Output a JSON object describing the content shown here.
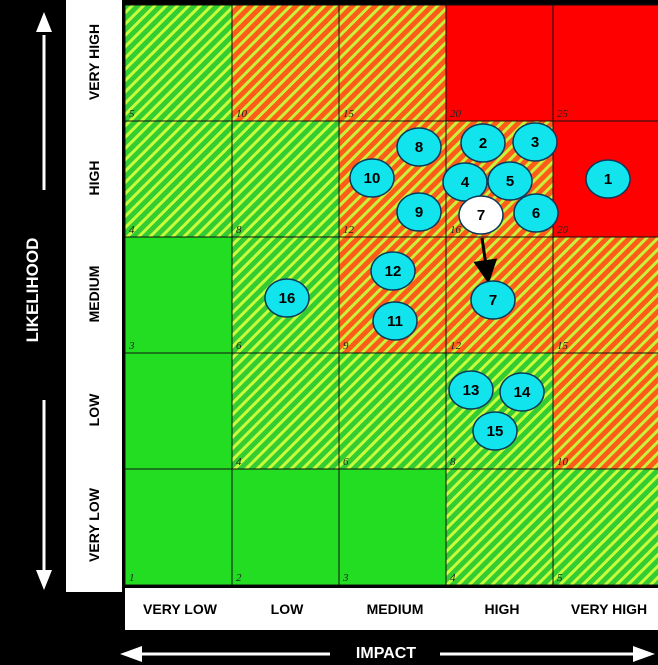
{
  "y_axis": {
    "title": "LIKELIHOOD",
    "levels": [
      "VERY HIGH",
      "HIGH",
      "MEDIUM",
      "LOW",
      "VERY LOW"
    ]
  },
  "x_axis": {
    "title": "IMPACT",
    "levels": [
      "VERY LOW",
      "LOW",
      "MEDIUM",
      "HIGH",
      "VERY HIGH"
    ]
  },
  "colors": {
    "green": "#22dd22",
    "hatch_green": "#33cc33",
    "hatch_lime": "#c8ff3a",
    "hatch_orange": "#ff5c1a",
    "hatch_dark_orange": "#e0421a",
    "red": "#ff0000",
    "marker_fill": "#11e4ec",
    "marker_highlight": "#ffffff"
  },
  "cells": [
    {
      "row": 0,
      "col": 0,
      "score": "5",
      "zone": "hatch-green"
    },
    {
      "row": 0,
      "col": 1,
      "score": "10",
      "zone": "hatch-orange"
    },
    {
      "row": 0,
      "col": 2,
      "score": "15",
      "zone": "hatch-orange"
    },
    {
      "row": 0,
      "col": 3,
      "score": "20",
      "zone": "red"
    },
    {
      "row": 0,
      "col": 4,
      "score": "25",
      "zone": "red"
    },
    {
      "row": 1,
      "col": 0,
      "score": "4",
      "zone": "hatch-green"
    },
    {
      "row": 1,
      "col": 1,
      "score": "8",
      "zone": "hatch-green"
    },
    {
      "row": 1,
      "col": 2,
      "score": "12",
      "zone": "hatch-orange"
    },
    {
      "row": 1,
      "col": 3,
      "score": "16",
      "zone": "hatch-orange"
    },
    {
      "row": 1,
      "col": 4,
      "score": "20",
      "zone": "red"
    },
    {
      "row": 2,
      "col": 0,
      "score": "3",
      "zone": "green"
    },
    {
      "row": 2,
      "col": 1,
      "score": "6",
      "zone": "hatch-green"
    },
    {
      "row": 2,
      "col": 2,
      "score": "9",
      "zone": "hatch-orange"
    },
    {
      "row": 2,
      "col": 3,
      "score": "12",
      "zone": "hatch-orange"
    },
    {
      "row": 2,
      "col": 4,
      "score": "15",
      "zone": "hatch-orange"
    },
    {
      "row": 3,
      "col": 0,
      "score": "",
      "zone": "green"
    },
    {
      "row": 3,
      "col": 1,
      "score": "4",
      "zone": "hatch-green"
    },
    {
      "row": 3,
      "col": 2,
      "score": "6",
      "zone": "hatch-green"
    },
    {
      "row": 3,
      "col": 3,
      "score": "8",
      "zone": "hatch-green"
    },
    {
      "row": 3,
      "col": 4,
      "score": "10",
      "zone": "hatch-orange"
    },
    {
      "row": 4,
      "col": 0,
      "score": "1",
      "zone": "green"
    },
    {
      "row": 4,
      "col": 1,
      "score": "2",
      "zone": "green"
    },
    {
      "row": 4,
      "col": 2,
      "score": "3",
      "zone": "green"
    },
    {
      "row": 4,
      "col": 3,
      "score": "4",
      "zone": "hatch-green"
    },
    {
      "row": 4,
      "col": 4,
      "score": "5",
      "zone": "hatch-green"
    }
  ],
  "risks": [
    {
      "id": "1",
      "likelihood": "HIGH",
      "impact": "VERY HIGH"
    },
    {
      "id": "2",
      "likelihood": "HIGH",
      "impact": "HIGH"
    },
    {
      "id": "3",
      "likelihood": "HIGH",
      "impact": "HIGH"
    },
    {
      "id": "4",
      "likelihood": "HIGH",
      "impact": "HIGH"
    },
    {
      "id": "5",
      "likelihood": "HIGH",
      "impact": "HIGH"
    },
    {
      "id": "6",
      "likelihood": "HIGH",
      "impact": "HIGH"
    },
    {
      "id": "7",
      "likelihood": "HIGH",
      "impact": "HIGH",
      "highlight": true
    },
    {
      "id": "8",
      "likelihood": "HIGH",
      "impact": "MEDIUM"
    },
    {
      "id": "9",
      "likelihood": "HIGH",
      "impact": "MEDIUM"
    },
    {
      "id": "10",
      "likelihood": "HIGH",
      "impact": "MEDIUM"
    },
    {
      "id": "7",
      "likelihood": "MEDIUM",
      "impact": "HIGH"
    },
    {
      "id": "11",
      "likelihood": "MEDIUM",
      "impact": "MEDIUM"
    },
    {
      "id": "12",
      "likelihood": "MEDIUM",
      "impact": "MEDIUM"
    },
    {
      "id": "16",
      "likelihood": "MEDIUM",
      "impact": "LOW"
    },
    {
      "id": "13",
      "likelihood": "LOW",
      "impact": "HIGH"
    },
    {
      "id": "14",
      "likelihood": "LOW",
      "impact": "HIGH"
    },
    {
      "id": "15",
      "likelihood": "LOW",
      "impact": "HIGH"
    }
  ],
  "movement": {
    "from": "7",
    "to": "7",
    "direction": "HIGH to MEDIUM likelihood"
  }
}
